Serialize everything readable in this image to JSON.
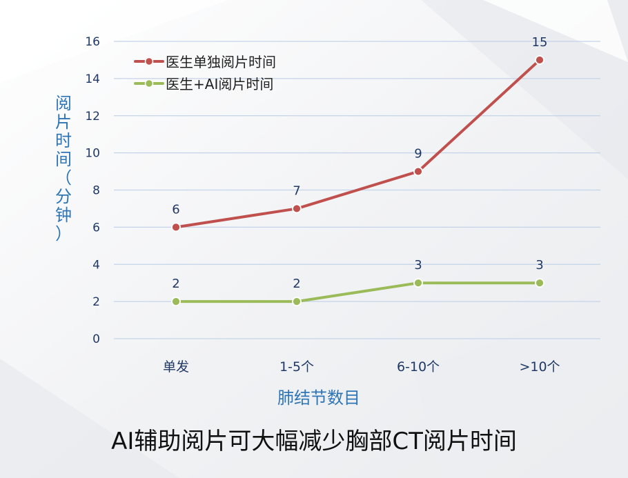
{
  "chart_data": {
    "type": "line",
    "categories": [
      "单发",
      "1-5个",
      "6-10个",
      ">10个"
    ],
    "series": [
      {
        "name": "医生单独阅片时间",
        "values": [
          6,
          7,
          9,
          15
        ],
        "color": "#c0504d"
      },
      {
        "name": "医生+AI阅片时间",
        "values": [
          2,
          2,
          3,
          3
        ],
        "color": "#9bbb59"
      }
    ],
    "xlabel": "肺结节数目",
    "ylabel": "阅片时间（分钟）",
    "ylim": [
      0,
      16
    ],
    "yticks": [
      0,
      2,
      4,
      6,
      8,
      10,
      12,
      14,
      16
    ],
    "grid": true,
    "legend": "top-left",
    "axis_text_color": "#1f3864",
    "xlabel_color": "#2e75b6",
    "grid_color": "#c5d3e8"
  },
  "caption": "AI辅助阅片可大幅减少胸部CT阅片时间"
}
